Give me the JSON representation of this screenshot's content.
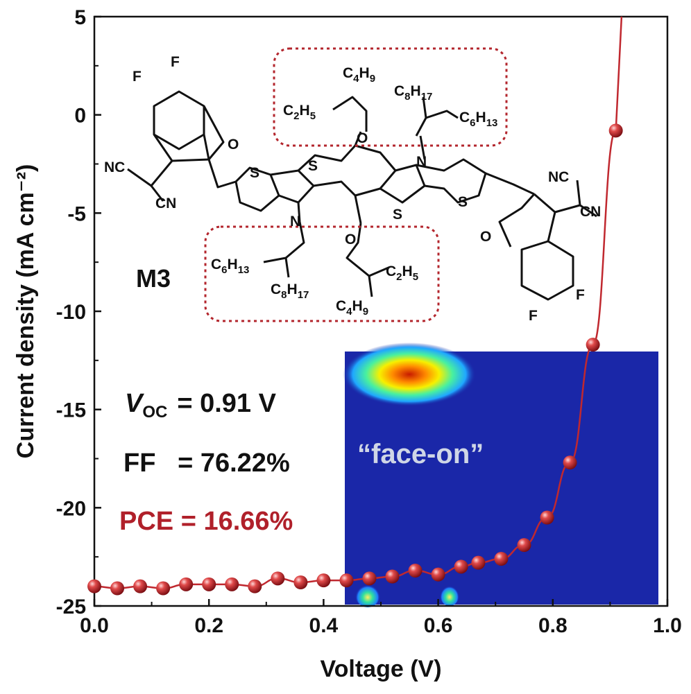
{
  "chart_data": {
    "type": "scatter",
    "xlabel": "Voltage (V)",
    "ylabel": "Current density (mA cm⁻²)",
    "xlim": [
      0.0,
      1.0
    ],
    "ylim": [
      -25,
      5
    ],
    "x_ticks": [
      "0.0",
      "0.2",
      "0.4",
      "0.6",
      "0.8",
      "1.0"
    ],
    "y_ticks": [
      "5",
      "0",
      "-5",
      "-10",
      "-15",
      "-20",
      "-25"
    ],
    "grid": false,
    "series": [
      {
        "color": "#c0282f",
        "marker": "sphere",
        "line": "solid",
        "x": [
          0.0,
          0.04,
          0.08,
          0.12,
          0.16,
          0.2,
          0.24,
          0.28,
          0.32,
          0.36,
          0.4,
          0.44,
          0.48,
          0.52,
          0.56,
          0.6,
          0.64,
          0.67,
          0.71,
          0.75,
          0.79,
          0.83,
          0.87,
          0.91
        ],
        "y": [
          -24.0,
          -24.1,
          -24.0,
          -24.1,
          -23.9,
          -23.9,
          -23.9,
          -24.0,
          -23.6,
          -23.8,
          -23.7,
          -23.7,
          -23.6,
          -23.5,
          -23.2,
          -23.4,
          -23.0,
          -22.8,
          -22.6,
          -21.9,
          -20.5,
          -17.7,
          -11.7,
          -0.8
        ]
      }
    ],
    "annotations": {
      "voc_symbol": "V",
      "voc_sub": "OC",
      "voc_value": "= 0.91 V",
      "ff": "FF   = 76.22%",
      "pce": "PCE = 16.66%",
      "molecule": "M3",
      "inset_text": "“face-on”"
    }
  },
  "molecule_groups": {
    "top_chain_1": [
      "C",
      "2",
      "H",
      "5"
    ],
    "top_chain_2": [
      "C",
      "4",
      "H",
      "9"
    ],
    "top_chain_3": [
      "C",
      "8",
      "H",
      "17"
    ],
    "top_chain_4": [
      "C",
      "6",
      "H",
      "13"
    ],
    "bottom_chain_1": [
      "C",
      "6",
      "H",
      "13"
    ],
    "bottom_chain_2": [
      "C",
      "8",
      "H",
      "17"
    ],
    "bottom_chain_3": [
      "C",
      "2",
      "H",
      "5"
    ],
    "bottom_chain_4": [
      "C",
      "4",
      "H",
      "9"
    ],
    "atoms": {
      "F": "F",
      "O": "O",
      "S": "S",
      "N": "N",
      "NC": "NC",
      "CN": "CN"
    }
  },
  "colors": {
    "series": "#c0282f",
    "pce_text": "#b0202a",
    "box_dash": "#b3262d",
    "inset_bg": "#1a27a8"
  }
}
